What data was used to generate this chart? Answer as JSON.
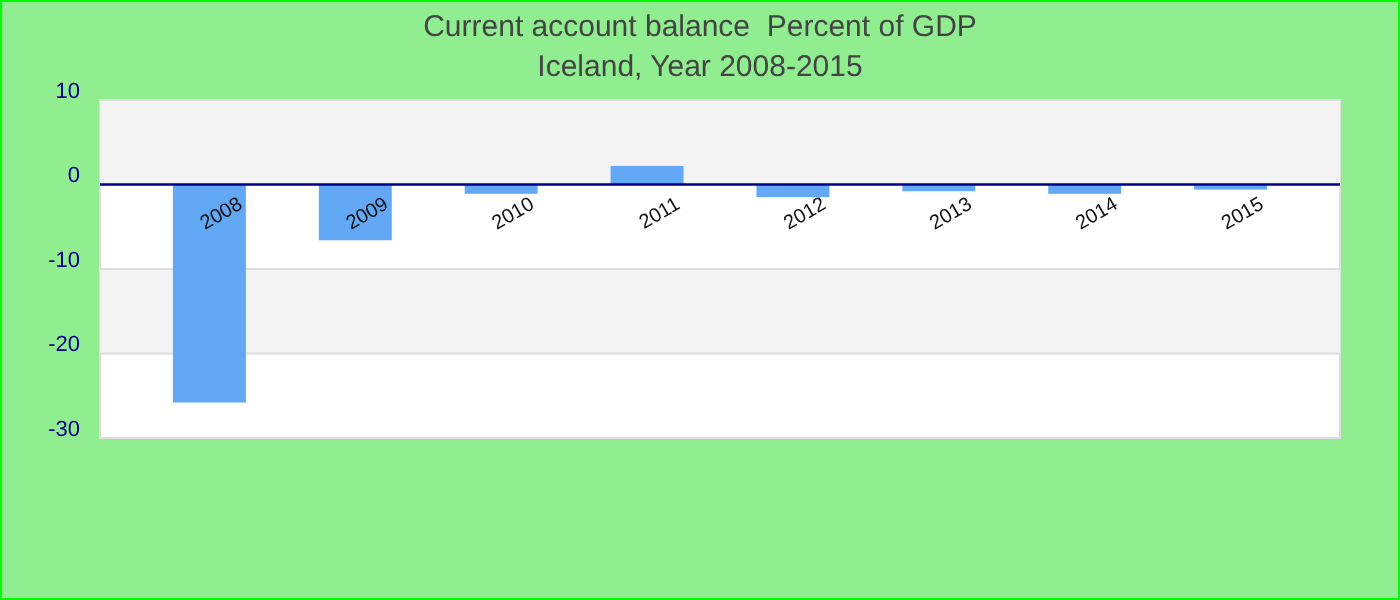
{
  "chart_data": {
    "type": "bar",
    "title": "Current account balance  Percent of GDP",
    "subtitle": "Iceland, Year 2008-2015",
    "categories": [
      "2008",
      "2009",
      "2010",
      "2011",
      "2012",
      "2013",
      "2014",
      "2015"
    ],
    "values": [
      -25.8,
      -6.6,
      -1.1,
      2.2,
      -1.5,
      -0.8,
      -1.1,
      -0.6
    ],
    "color": "#63a8f5",
    "ylim": [
      -30,
      10
    ],
    "yticks": [
      -30,
      -20,
      -10,
      0,
      10
    ],
    "grid": true
  }
}
